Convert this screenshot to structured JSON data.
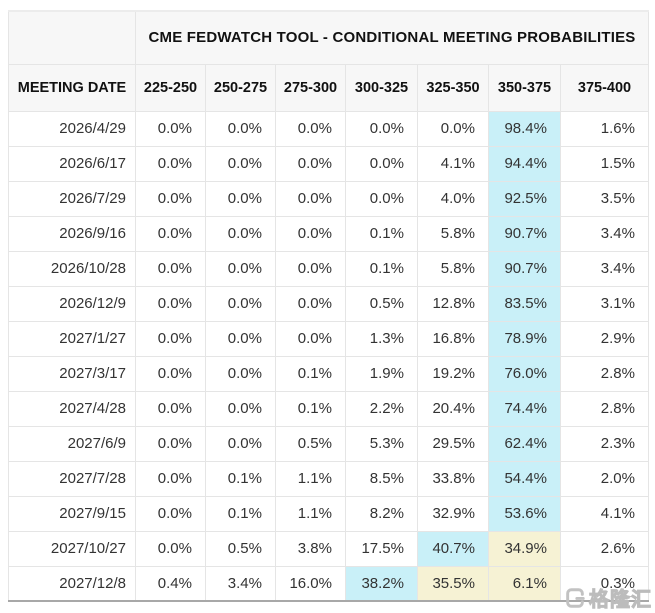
{
  "title": "CME FEDWATCH TOOL - CONDITIONAL MEETING PROBABILITIES",
  "columns": [
    "MEETING DATE",
    "225-250",
    "250-275",
    "275-300",
    "300-325",
    "325-350",
    "350-375",
    "375-400"
  ],
  "rows": [
    {
      "date": "2026/4/29",
      "values": [
        "0.0%",
        "0.0%",
        "0.0%",
        "0.0%",
        "0.0%",
        "98.4%",
        "1.6%"
      ],
      "hl": [
        "",
        "",
        "",
        "",
        "",
        "c",
        ""
      ]
    },
    {
      "date": "2026/6/17",
      "values": [
        "0.0%",
        "0.0%",
        "0.0%",
        "0.0%",
        "4.1%",
        "94.4%",
        "1.5%"
      ],
      "hl": [
        "",
        "",
        "",
        "",
        "",
        "c",
        ""
      ]
    },
    {
      "date": "2026/7/29",
      "values": [
        "0.0%",
        "0.0%",
        "0.0%",
        "0.0%",
        "4.0%",
        "92.5%",
        "3.5%"
      ],
      "hl": [
        "",
        "",
        "",
        "",
        "",
        "c",
        ""
      ]
    },
    {
      "date": "2026/9/16",
      "values": [
        "0.0%",
        "0.0%",
        "0.0%",
        "0.1%",
        "5.8%",
        "90.7%",
        "3.4%"
      ],
      "hl": [
        "",
        "",
        "",
        "",
        "",
        "c",
        ""
      ]
    },
    {
      "date": "2026/10/28",
      "values": [
        "0.0%",
        "0.0%",
        "0.0%",
        "0.1%",
        "5.8%",
        "90.7%",
        "3.4%"
      ],
      "hl": [
        "",
        "",
        "",
        "",
        "",
        "c",
        ""
      ]
    },
    {
      "date": "2026/12/9",
      "values": [
        "0.0%",
        "0.0%",
        "0.0%",
        "0.5%",
        "12.8%",
        "83.5%",
        "3.1%"
      ],
      "hl": [
        "",
        "",
        "",
        "",
        "",
        "c",
        ""
      ]
    },
    {
      "date": "2027/1/27",
      "values": [
        "0.0%",
        "0.0%",
        "0.0%",
        "1.3%",
        "16.8%",
        "78.9%",
        "2.9%"
      ],
      "hl": [
        "",
        "",
        "",
        "",
        "",
        "c",
        ""
      ]
    },
    {
      "date": "2027/3/17",
      "values": [
        "0.0%",
        "0.0%",
        "0.1%",
        "1.9%",
        "19.2%",
        "76.0%",
        "2.8%"
      ],
      "hl": [
        "",
        "",
        "",
        "",
        "",
        "c",
        ""
      ]
    },
    {
      "date": "2027/4/28",
      "values": [
        "0.0%",
        "0.0%",
        "0.1%",
        "2.2%",
        "20.4%",
        "74.4%",
        "2.8%"
      ],
      "hl": [
        "",
        "",
        "",
        "",
        "",
        "c",
        ""
      ]
    },
    {
      "date": "2027/6/9",
      "values": [
        "0.0%",
        "0.0%",
        "0.5%",
        "5.3%",
        "29.5%",
        "62.4%",
        "2.3%"
      ],
      "hl": [
        "",
        "",
        "",
        "",
        "",
        "c",
        ""
      ]
    },
    {
      "date": "2027/7/28",
      "values": [
        "0.0%",
        "0.1%",
        "1.1%",
        "8.5%",
        "33.8%",
        "54.4%",
        "2.0%"
      ],
      "hl": [
        "",
        "",
        "",
        "",
        "",
        "c",
        ""
      ]
    },
    {
      "date": "2027/9/15",
      "values": [
        "0.0%",
        "0.1%",
        "1.1%",
        "8.2%",
        "32.9%",
        "53.6%",
        "4.1%"
      ],
      "hl": [
        "",
        "",
        "",
        "",
        "",
        "c",
        ""
      ]
    },
    {
      "date": "2027/10/27",
      "values": [
        "0.0%",
        "0.5%",
        "3.8%",
        "17.5%",
        "40.7%",
        "34.9%",
        "2.6%"
      ],
      "hl": [
        "",
        "",
        "",
        "",
        "c",
        "y",
        ""
      ]
    },
    {
      "date": "2027/12/8",
      "values": [
        "0.4%",
        "3.4%",
        "16.0%",
        "38.2%",
        "35.5%",
        "6.1%",
        "0.3%"
      ],
      "hl": [
        "",
        "",
        "",
        "c",
        "y",
        "y",
        ""
      ]
    }
  ],
  "colors": {
    "highlight_cyan": "#c9f0f8",
    "highlight_yellow": "#f6f2d4",
    "header_bg": "#f7f7f7",
    "bottom_border": "#a8a8a8"
  },
  "watermark": {
    "text": "格隆汇",
    "logo": "gelonghui-logo"
  }
}
